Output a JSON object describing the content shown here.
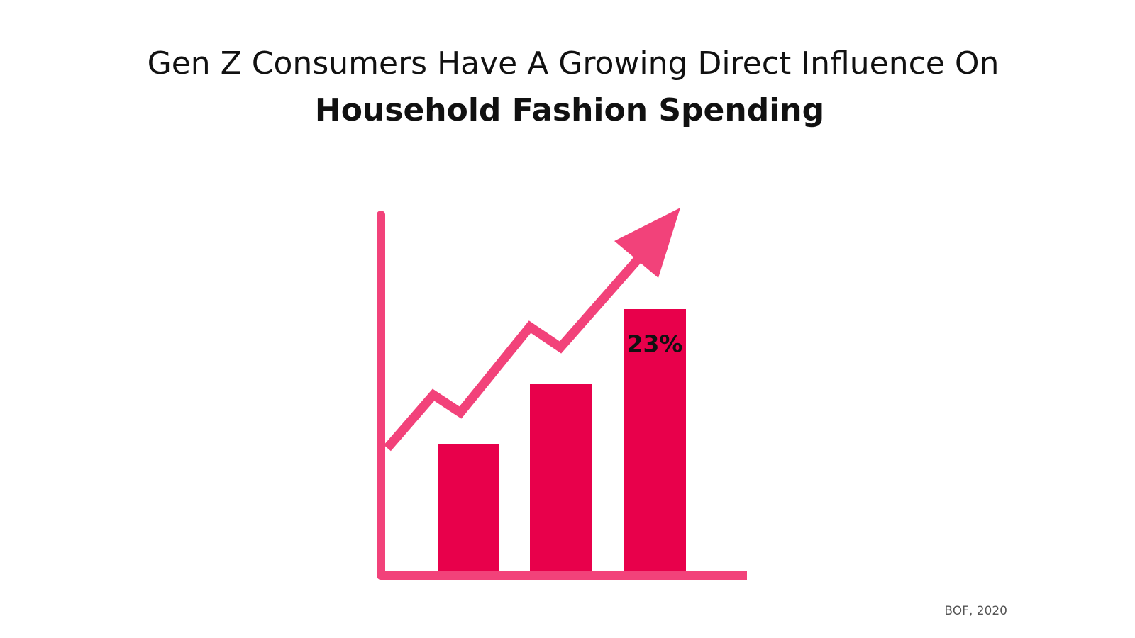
{
  "title": {
    "line1": "Gen Z Consumers Have A Growing Direct Influence On",
    "line2": "Household Fashion Spending"
  },
  "bar_label": "23%",
  "source": "BOF, 2020"
}
